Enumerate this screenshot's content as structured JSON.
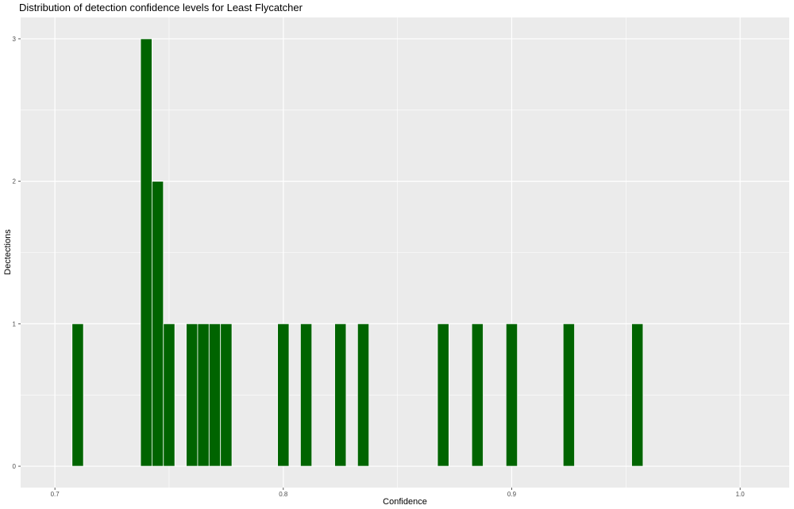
{
  "chart_data": {
    "type": "bar",
    "title": "Distribution of detection confidence levels for Least Flycatcher",
    "xlabel": "Confidence",
    "ylabel": "Dectections",
    "xlim": [
      0.685,
      1.0215
    ],
    "ylim": [
      -0.15,
      3.15
    ],
    "bin_width": 0.005,
    "x_ticks": [
      0.7,
      0.8,
      0.9,
      1.0
    ],
    "x_tick_labels": [
      "0.7",
      "0.8",
      "0.9",
      "1.0"
    ],
    "y_ticks": [
      0,
      1,
      2,
      3
    ],
    "y_tick_labels": [
      "0",
      "1",
      "2",
      "3"
    ],
    "grid": true,
    "colors": {
      "bar_fill": "#006400",
      "bar_outline": "#ffffff",
      "panel": "#ebebeb",
      "grid": "#ffffff"
    },
    "x": [
      0.71,
      0.74,
      0.745,
      0.75,
      0.76,
      0.765,
      0.77,
      0.775,
      0.8,
      0.81,
      0.825,
      0.835,
      0.87,
      0.885,
      0.9,
      0.925,
      0.955
    ],
    "values": [
      1,
      3,
      2,
      1,
      1,
      1,
      1,
      1,
      1,
      1,
      1,
      1,
      1,
      1,
      1,
      1,
      1
    ]
  }
}
